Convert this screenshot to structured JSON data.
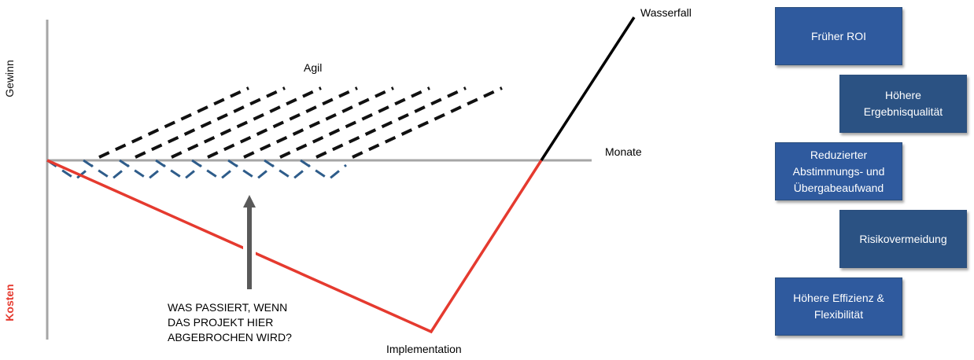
{
  "labels": {
    "gewinn": "Gewinn",
    "kosten": "Kosten",
    "monate": "Monate",
    "wasserfall": "Wasserfall",
    "agil": "Agil",
    "implementation": "Implementation",
    "question_lines": [
      "WAS PASSIERT, WENN",
      "DAS PROJEKT HIER",
      "ABGEBROCHEN WIRD?"
    ]
  },
  "colors": {
    "axis": "#a6a6a6",
    "waterfall_cost": "#e53a2f",
    "waterfall_gain": "#000000",
    "agile_gain": "#111111",
    "agile_cost": "#2e5c8a",
    "arrow": "#595959",
    "kosten_label": "#e53a2f",
    "box_light": "#2f5a9e",
    "box_dark": "#2b5283"
  },
  "benefits": [
    "Früher ROI",
    "Höhere\nErgebnisqualität",
    "Reduzierter\nAbstimmungs- und\nÜbergabeaufwand",
    "Risikovermeidung",
    "Höhere Effizienz &\nFlexibilität"
  ]
}
